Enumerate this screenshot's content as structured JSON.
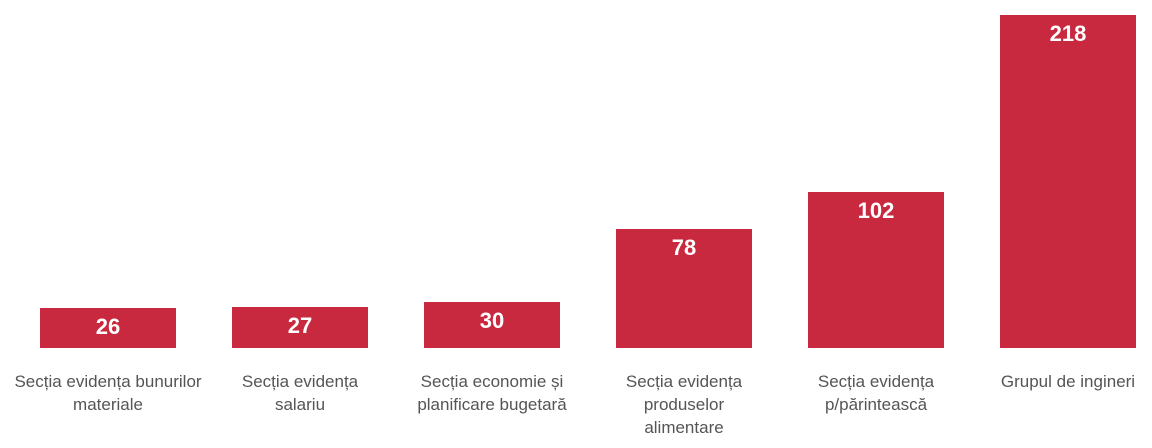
{
  "chart_data": {
    "type": "bar",
    "categories": [
      "Secția evidența bunurilor materiale",
      "Secția evidența salariu",
      "Secția economie și planificare bugetară",
      "Secția evidența produselor alimentare",
      "Secția evidența p/părintească",
      "Grupul de ingineri"
    ],
    "values": [
      26,
      27,
      30,
      78,
      102,
      218
    ],
    "color": "#c9293f"
  }
}
